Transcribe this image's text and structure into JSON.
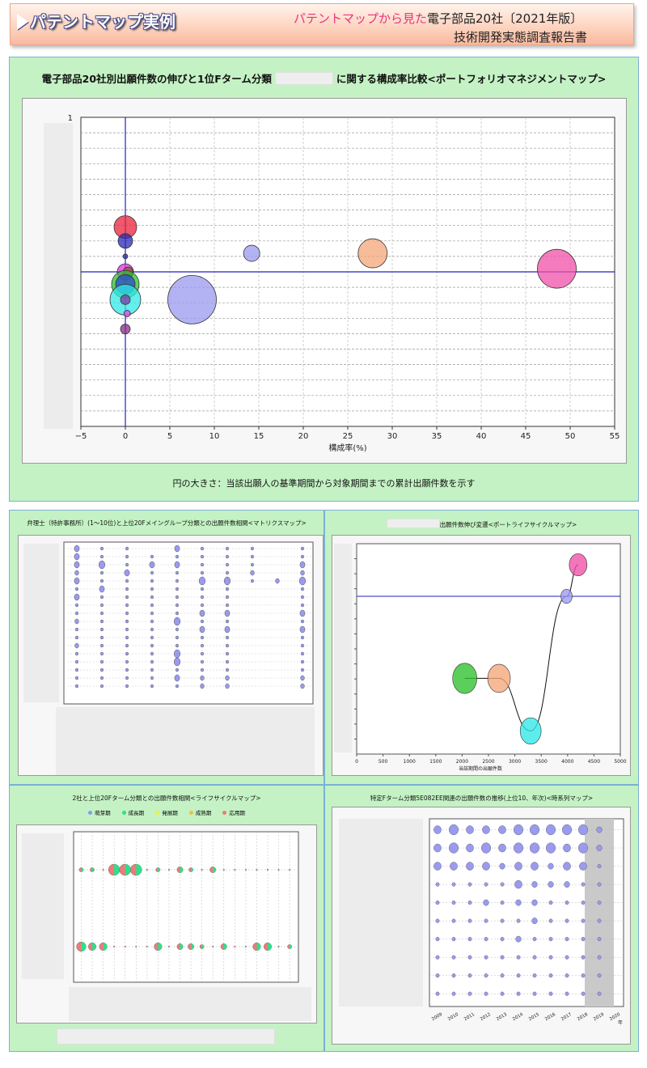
{
  "header": {
    "title": "パテントマップ実例",
    "subtitle_pink": "パテントマップから見た",
    "subtitle_black": "電子部品20社〔2021年版〕",
    "subtitle_line2": "技術開発実態調査報告書"
  },
  "colors": {
    "panel_bg": "#c4f2c4",
    "axis_line": "#2222bb",
    "bubble_blue": "#9a9af0"
  },
  "main": {
    "title_part1": "電子部品20社別出願件数の伸びと1位Fターム分類",
    "title_part2": "に関する構成率比較<ポートフォリオマネジメントマップ>",
    "note": "円の大きさ：当該出願人の基準期間から対象期間までの累計出願件数を示す"
  },
  "matrix": {
    "title": "弁理士（特許事務所）(1～10位)と上位20Fメイングループ分類との出願件数相関<マトリクスマップ>"
  },
  "lifecycle": {
    "title": "出願件数伸び変遷<ポートライフサイクルマップ>"
  },
  "lifecycle2": {
    "title": "2社と上位20Fターム分類との出願件数相関<ライフサイクルマップ>",
    "legend": [
      "萌芽期",
      "成長期",
      "発展期",
      "成熟期",
      "応用期"
    ]
  },
  "timeseries": {
    "title": "特定Fターム分類5E082EE関連の出願件数の推移(上位10、年次)<時系列マップ>"
  },
  "chart_data": [
    {
      "type": "scatter",
      "title": "電子部品20社別出願件数の伸びと1位Fターム分類に関する構成率比較<ポートフォリオマネジメントマップ>",
      "xlabel": "構成率(%)",
      "ylabel": "",
      "xlim": [
        -5,
        55
      ],
      "ylim": [
        0,
        1
      ],
      "xticks": [
        -5,
        0,
        5,
        10,
        15,
        20,
        25,
        30,
        35,
        40,
        45,
        50,
        55
      ],
      "yticks_labeled": [
        "1"
      ],
      "grid": true,
      "size_note": "円の大きさ：当該出願人の基準期間から対象期間までの累計出願件数を示す",
      "points": [
        {
          "x": 0,
          "y": 0.645,
          "r": 14,
          "color": "#e8223a"
        },
        {
          "x": 0,
          "y": 0.6,
          "r": 9,
          "color": "#2a2ab4"
        },
        {
          "x": 0,
          "y": 0.55,
          "r": 3,
          "color": "#2a2ab4"
        },
        {
          "x": 0,
          "y": 0.5,
          "r": 10,
          "color": "#e030e0"
        },
        {
          "x": 0.3,
          "y": 0.5,
          "r": 6,
          "color": "#8a5a2a"
        },
        {
          "x": 0,
          "y": 0.46,
          "r": 17,
          "color": "#2ec02e"
        },
        {
          "x": 0,
          "y": 0.46,
          "r": 12,
          "color": "#2a4ad0"
        },
        {
          "x": 0,
          "y": 0.41,
          "r": 19,
          "color": "#30e8e8"
        },
        {
          "x": 0,
          "y": 0.41,
          "r": 6,
          "color": "#7a3aa0"
        },
        {
          "x": 0.2,
          "y": 0.365,
          "r": 4,
          "color": "#f040f0"
        },
        {
          "x": 0,
          "y": 0.315,
          "r": 6,
          "color": "#8a2a8a"
        },
        {
          "x": 7.5,
          "y": 0.41,
          "r": 30,
          "color": "#9a9af0"
        },
        {
          "x": 14.2,
          "y": 0.56,
          "r": 10,
          "color": "#9a9af0"
        },
        {
          "x": 27.8,
          "y": 0.56,
          "r": 18,
          "color": "#f4a77a"
        },
        {
          "x": 48.5,
          "y": 0.51,
          "r": 24,
          "color": "#f050a8"
        }
      ],
      "ref_lines": {
        "x": 0,
        "y": 0.5
      }
    },
    {
      "type": "scatter",
      "title": "出願件数伸び変遷<ポートライフサイクルマップ>",
      "xlabel": "当該期間の出願件数",
      "xlim": [
        0,
        5000
      ],
      "xticks": [
        0,
        500,
        1000,
        1500,
        2000,
        2500,
        3000,
        3500,
        4000,
        4500,
        5000
      ],
      "ylim": [
        0,
        1
      ],
      "grid": true,
      "ref_line_y": 0.75,
      "points": [
        {
          "x": 2050,
          "y": 0.36,
          "r": 15,
          "color": "#2ec02e"
        },
        {
          "x": 2700,
          "y": 0.36,
          "r": 14,
          "color": "#f4a77a"
        },
        {
          "x": 3300,
          "y": 0.11,
          "r": 13,
          "color": "#30e8e8"
        },
        {
          "x": 3980,
          "y": 0.75,
          "r": 7,
          "color": "#9a9af0"
        },
        {
          "x": 4200,
          "y": 0.9,
          "r": 11,
          "color": "#f050a8"
        }
      ]
    },
    {
      "type": "scatter",
      "title": "2社と上位20Fターム分類との出願件数相関<ライフサイクルマップ>",
      "legend": [
        "萌芽期",
        "成長期",
        "発展期",
        "成熟期",
        "応用期"
      ],
      "legend_colors": [
        "#8a9af0",
        "#2ee08a",
        "#f0f040",
        "#f0c040",
        "#f07a7a"
      ],
      "rows": [
        {
          "values": [
            1,
            1,
            0,
            5,
            5,
            5,
            0,
            1,
            0,
            2,
            1,
            0,
            2,
            0,
            0,
            0,
            0,
            0,
            0,
            0
          ]
        },
        {
          "values": [
            4,
            3,
            3,
            0,
            0,
            0,
            0,
            3,
            0,
            2,
            2,
            1,
            0,
            2,
            0,
            0,
            3,
            3,
            0,
            1
          ]
        }
      ]
    },
    {
      "type": "scatter",
      "title": "特定Fターム分類5E082EE関連の出願件数の推移(上位10、年次)<時系列マップ>",
      "x": [
        "2009",
        "2010",
        "2011",
        "2012",
        "2013",
        "2014",
        "2015",
        "2016",
        "2017",
        "2018",
        "2019",
        "2020"
      ],
      "xlabel_suffix": "年",
      "rows": [
        {
          "values": [
            3,
            4,
            3,
            3,
            3,
            4,
            4,
            4,
            4,
            4,
            2,
            0
          ]
        },
        {
          "values": [
            3,
            4,
            3,
            4,
            3,
            4,
            4,
            4,
            3,
            4,
            2,
            0
          ]
        },
        {
          "values": [
            3,
            3,
            3,
            3,
            2,
            3,
            3,
            2,
            3,
            3,
            1,
            0
          ]
        },
        {
          "values": [
            1,
            1,
            1,
            1,
            1,
            3,
            2,
            2,
            2,
            1,
            1,
            0
          ]
        },
        {
          "values": [
            1,
            1,
            1,
            2,
            1,
            2,
            2,
            1,
            1,
            1,
            1,
            0
          ]
        },
        {
          "values": [
            1,
            1,
            1,
            1,
            1,
            1,
            2,
            1,
            1,
            1,
            1,
            0
          ]
        },
        {
          "values": [
            1,
            1,
            1,
            1,
            1,
            2,
            1,
            1,
            1,
            1,
            1,
            0
          ]
        },
        {
          "values": [
            1,
            1,
            1,
            1,
            1,
            1,
            1,
            1,
            1,
            1,
            1,
            0
          ]
        },
        {
          "values": [
            1,
            1,
            1,
            1,
            1,
            1,
            1,
            1,
            1,
            1,
            1,
            0
          ]
        },
        {
          "values": [
            1,
            1,
            1,
            1,
            1,
            1,
            1,
            1,
            1,
            1,
            1,
            0
          ]
        }
      ]
    }
  ]
}
